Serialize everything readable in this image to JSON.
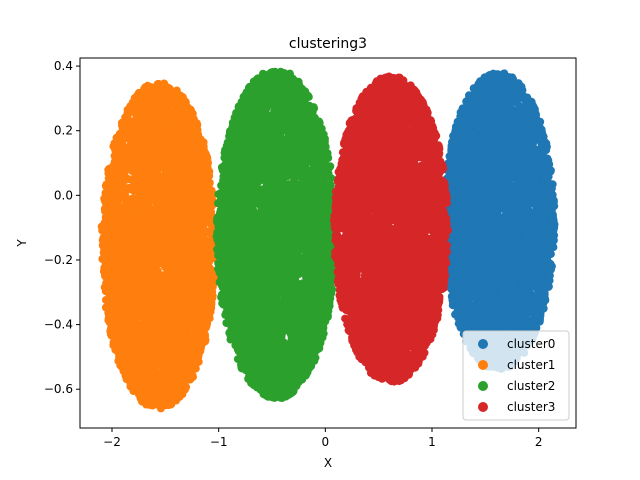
{
  "chart_data": {
    "type": "scatter",
    "title": "clustering3",
    "xlabel": "X",
    "ylabel": "Y",
    "xlim": [
      -2.3,
      2.35
    ],
    "ylim": [
      -0.72,
      0.425
    ],
    "xticks": [
      -2,
      -1,
      0,
      1,
      2
    ],
    "xtick_labels": [
      "−2",
      "−1",
      "0",
      "1",
      "2"
    ],
    "yticks": [
      -0.6,
      -0.4,
      -0.2,
      0.0,
      0.2,
      0.4
    ],
    "ytick_labels": [
      "−0.6",
      "−0.4",
      "−0.2",
      "0.0",
      "0.2",
      "0.4"
    ],
    "grid": false,
    "legend_position": "lower-right",
    "series": [
      {
        "name": "cluster0",
        "color": "#1f77b4",
        "center": [
          1.6,
          -0.1
        ],
        "x_range": [
          1.1,
          2.15
        ],
        "y_range": [
          -0.54,
          0.38
        ],
        "points": 4200
      },
      {
        "name": "cluster1",
        "color": "#ff7f0e",
        "center": [
          -1.6,
          -0.15
        ],
        "x_range": [
          -2.1,
          -1.02
        ],
        "y_range": [
          -0.66,
          0.35
        ],
        "points": 4200
      },
      {
        "name": "cluster2",
        "color": "#2ca02c",
        "center": [
          -0.55,
          -0.13
        ],
        "x_range": [
          -1.02,
          0.1
        ],
        "y_range": [
          -0.63,
          0.39
        ],
        "points": 4200
      },
      {
        "name": "cluster3",
        "color": "#d62728",
        "center": [
          0.6,
          -0.1
        ],
        "x_range": [
          0.08,
          1.15
        ],
        "y_range": [
          -0.58,
          0.37
        ],
        "points": 4200
      }
    ]
  }
}
